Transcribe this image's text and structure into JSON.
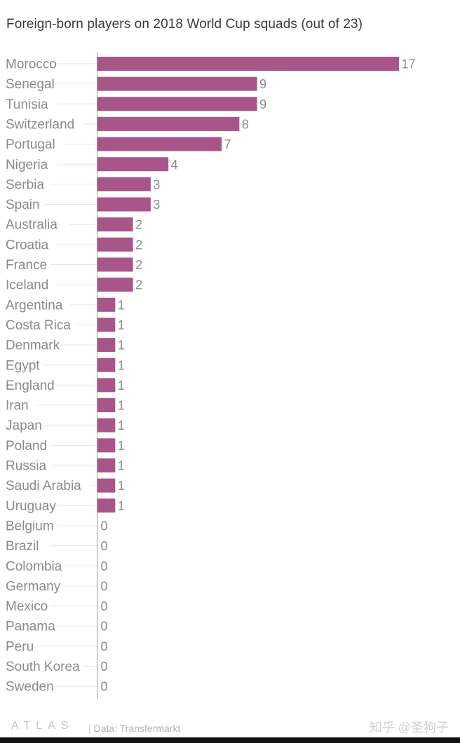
{
  "chart_data": {
    "type": "bar",
    "orientation": "horizontal",
    "title": "Foreign-born players on 2018 World Cup squads (out of 23)",
    "categories": [
      "Morocco",
      "Senegal",
      "Tunisia",
      "Switzerland",
      "Portugal",
      "Nigeria",
      "Serbia",
      "Spain",
      "Australia",
      "Croatia",
      "France",
      "Iceland",
      "Argentina",
      "Costa Rica",
      "Denmark",
      "Egypt",
      "England",
      "Iran",
      "Japan",
      "Poland",
      "Russia",
      "Saudi Arabia",
      "Uruguay",
      "Belgium",
      "Brazil",
      "Colombia",
      "Germany",
      "Mexico",
      "Panama",
      "Peru",
      "South Korea",
      "Sweden"
    ],
    "values": [
      17,
      9,
      9,
      8,
      7,
      4,
      3,
      3,
      2,
      2,
      2,
      2,
      1,
      1,
      1,
      1,
      1,
      1,
      1,
      1,
      1,
      1,
      1,
      0,
      0,
      0,
      0,
      0,
      0,
      0,
      0,
      0
    ],
    "xlim": [
      0,
      17
    ],
    "data_labels": true,
    "grid": false,
    "bar_color": "#a8568a"
  },
  "footer": {
    "logo": "ATLAS",
    "separator": "|",
    "source": "Data: Transfermarkt"
  },
  "watermark": "知乎 @圣狗子"
}
